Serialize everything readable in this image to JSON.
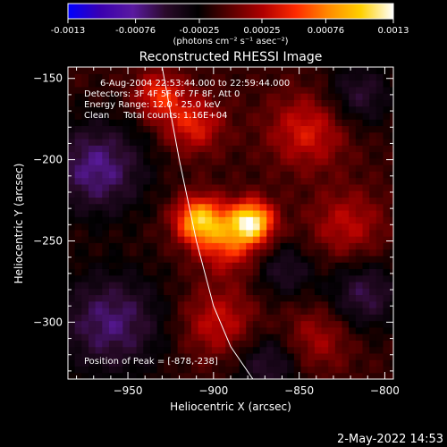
{
  "colorbar": {
    "ticks": [
      "-0.0013",
      "-0.00076",
      "-0.00025",
      "0.00025",
      "0.00076",
      "0.0013"
    ],
    "tick_values": [
      -0.0013,
      -0.00076,
      -0.00025,
      0.00025,
      0.00076,
      0.0013
    ],
    "range": [
      -0.0013,
      0.0013
    ],
    "units_label": "(photons cm⁻² s⁻¹ asec⁻²)",
    "colormap": [
      "#0000ff",
      "#3a00b0",
      "#5a1aa0",
      "#2a0a2a",
      "#000000",
      "#5a0000",
      "#b00000",
      "#ff2a00",
      "#ff8a00",
      "#ffd000",
      "#ffffff"
    ]
  },
  "chart_data": {
    "type": "heatmap",
    "title": "Reconstructed RHESSI Image",
    "xlabel": "Heliocentric X (arcsec)",
    "ylabel": "Heliocentric Y (arcsec)",
    "xlim": [
      -985,
      -795
    ],
    "ylim": [
      -335,
      -143
    ],
    "xticks": [
      -950,
      -900,
      -850,
      -800
    ],
    "yticks": [
      -150,
      -200,
      -250,
      -300
    ],
    "xtick_labels": [
      "−950",
      "−900",
      "−850",
      "−800"
    ],
    "ytick_labels": [
      "−150",
      "−200",
      "−250",
      "−300"
    ],
    "annotations": [
      "6-Aug-2004 22:53:44.000 to 22:59:44.000",
      "Detectors: 3F 4F 5F 6F 7F 8F, Att 0",
      "Energy Range: 12.0 - 25.0 keV",
      "Clean     Total counts: 1.16E+04"
    ],
    "peak_label": "Position of Peak = [-878,-238]",
    "peak": [
      -878,
      -238
    ],
    "sources": [
      {
        "x": -878,
        "y": -238,
        "amp": 0.0013,
        "sigma": 9
      },
      {
        "x": -908,
        "y": -237,
        "amp": 0.0011,
        "sigma": 10
      },
      {
        "x": -892,
        "y": -252,
        "amp": 0.0006,
        "sigma": 12
      },
      {
        "x": -897,
        "y": -300,
        "amp": 0.00045,
        "sigma": 15
      },
      {
        "x": -912,
        "y": -178,
        "amp": 0.00055,
        "sigma": 12
      },
      {
        "x": -932,
        "y": -160,
        "amp": 0.0006,
        "sigma": 10
      },
      {
        "x": -845,
        "y": -182,
        "amp": 0.0005,
        "sigma": 16
      },
      {
        "x": -822,
        "y": -240,
        "amp": 0.0004,
        "sigma": 15
      },
      {
        "x": -840,
        "y": -310,
        "amp": 0.00035,
        "sigma": 14
      },
      {
        "x": -960,
        "y": -300,
        "amp": -0.00055,
        "sigma": 22
      },
      {
        "x": -968,
        "y": -205,
        "amp": -0.0006,
        "sigma": 20
      },
      {
        "x": -812,
        "y": -283,
        "amp": -0.00045,
        "sigma": 15
      },
      {
        "x": -858,
        "y": -268,
        "amp": -0.00035,
        "sigma": 12
      },
      {
        "x": -868,
        "y": -325,
        "amp": -0.0004,
        "sigma": 14
      },
      {
        "x": -815,
        "y": -160,
        "amp": -0.0004,
        "sigma": 14
      }
    ],
    "limb": [
      [
        -930,
        -143
      ],
      [
        -920,
        -200
      ],
      [
        -910,
        -250
      ],
      [
        -900,
        -290
      ],
      [
        -890,
        -315
      ],
      [
        -877,
        -335
      ]
    ]
  },
  "footer": {
    "timestamp": "2-May-2022 14:53"
  }
}
